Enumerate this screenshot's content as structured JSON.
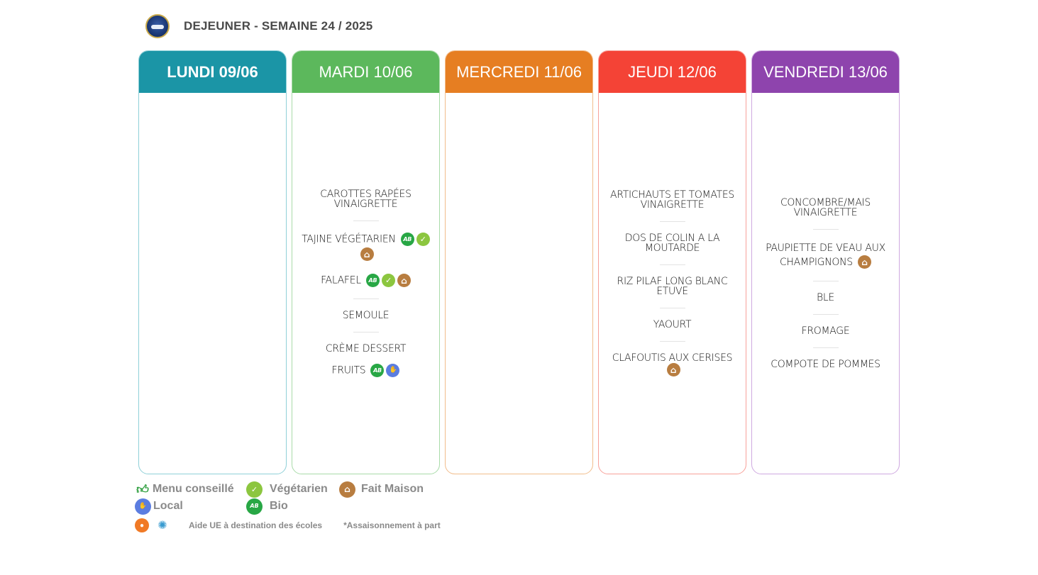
{
  "header": {
    "title": "DEJEUNER - SEMAINE 24 / 2025"
  },
  "colors": {
    "lundi": "#1b95a6",
    "mardi": "#5cb85c",
    "mercredi": "#e67e22",
    "jeudi": "#f44336",
    "vendredi": "#8e44ad"
  },
  "days": [
    {
      "label": "LUNDI 09/06"
    },
    {
      "label": "MARDI 10/06",
      "dishes": [
        {
          "name": "CAROTTES RAPÉES VINAIGRETTE"
        },
        {
          "name": "TAJINE VÉGÉTARIEN",
          "icons": [
            "bio-icon",
            "vegetarian-icon",
            "homemade-icon"
          ]
        },
        {
          "name": "FALAFEL",
          "icons": [
            "bio-icon",
            "vegetarian-icon",
            "homemade-icon"
          ]
        },
        {
          "name": "SEMOULE"
        },
        {
          "name": "CRÈME DESSERT"
        },
        {
          "name": "FRUITS",
          "icons": [
            "bio-icon",
            "local-icon"
          ]
        }
      ]
    },
    {
      "label": "MERCREDI 11/06"
    },
    {
      "label": "JEUDI 12/06",
      "dishes": [
        {
          "name": "ARTICHAUTS ET TOMATES VINAIGRETTE"
        },
        {
          "name": "DOS DE COLIN A LA MOUTARDE"
        },
        {
          "name": "RIZ PILAF LONG BLANC ETUVE"
        },
        {
          "name": "YAOURT"
        },
        {
          "name": "CLAFOUTIS AUX CERISES",
          "icons": [
            "homemade-icon"
          ]
        }
      ]
    },
    {
      "label": "VENDREDI 13/06",
      "dishes": [
        {
          "name": "CONCOMBRE/MAIS VINAIGRETTE"
        },
        {
          "name": "PAUPIETTE DE VEAU AUX CHAMPIGNONS",
          "icons": [
            "homemade-icon"
          ]
        },
        {
          "name": "BLE"
        },
        {
          "name": "FROMAGE"
        },
        {
          "name": "COMPOTE DE POMMES"
        }
      ]
    }
  ],
  "legend": {
    "menu_conseille": "Menu conseillé",
    "vegetarien": "Végétarien",
    "fait_maison": "Fait Maison",
    "local": "Local",
    "bio": "Bio"
  },
  "footnote": {
    "aide_ue": "Aide UE à destination des écoles",
    "assaisonnement": "*Assaisonnement à part"
  }
}
